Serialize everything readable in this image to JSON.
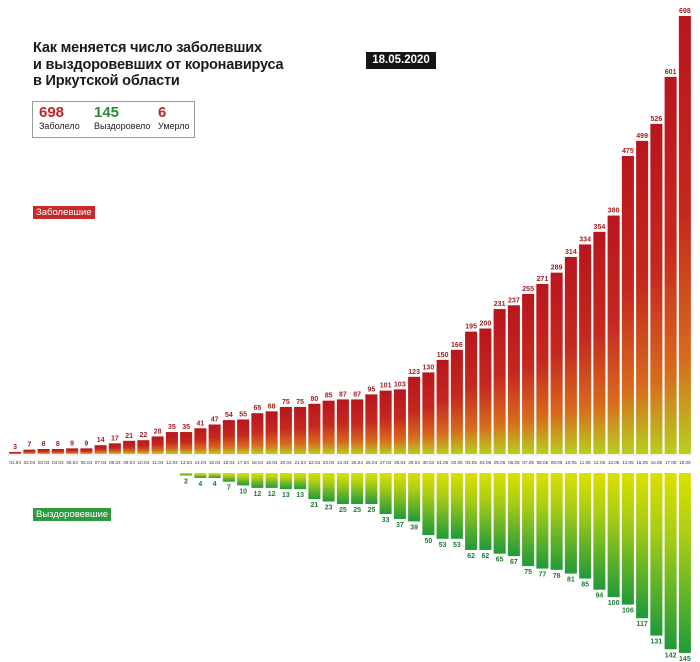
{
  "header": {
    "title_lines": [
      "Как меняется число заболевших",
      "и выздоровевших от коронавируса",
      "в Иркутской области"
    ],
    "date": "18.05.2020"
  },
  "stats": {
    "infected": {
      "value": "698",
      "label": "Заболело"
    },
    "recovered": {
      "value": "145",
      "label": "Выздоровело"
    },
    "deaths": {
      "value": "6",
      "label": "Умерло"
    }
  },
  "legend": {
    "infected": "Заболевшие",
    "recovered": "Выздоровевшие"
  },
  "colors": {
    "infected_text": "#c0262d",
    "recovered_text": "#2a8a3a",
    "deaths_text": "#c0262d",
    "infected_tag": "#c72a2a",
    "recovered_tag": "#2d9a3e",
    "bar_red": "#c01f24",
    "bar_orange": "#e07a1c",
    "bar_yellow": "#d8d800",
    "bar_green": "#3aa536"
  },
  "chart_data": {
    "type": "bar",
    "categories": [
      "01.04",
      "02.04",
      "03.04",
      "04.04",
      "05.04",
      "06.04",
      "07.04",
      "08.04",
      "09.04",
      "10.04",
      "11.04",
      "12.04",
      "13.04",
      "14.04",
      "15.04",
      "16.04",
      "17.04",
      "18.04",
      "19.04",
      "20.04",
      "21.04",
      "22.04",
      "23.04",
      "24.04",
      "25.04",
      "26.04",
      "27.04",
      "28.04",
      "29.04",
      "30.04",
      "01.05",
      "02.05",
      "03.05",
      "04.05",
      "05.05",
      "06.05",
      "07.05",
      "08.05",
      "09.05",
      "10.05",
      "11.05",
      "12.05",
      "13.05",
      "14.05",
      "15.05",
      "16.05",
      "17.05",
      "18.05"
    ],
    "series": [
      {
        "name": "Заболевшие",
        "values": [
          3,
          7,
          8,
          8,
          9,
          9,
          14,
          17,
          21,
          22,
          28,
          35,
          35,
          41,
          47,
          54,
          55,
          65,
          68,
          75,
          75,
          80,
          85,
          87,
          87,
          95,
          101,
          103,
          123,
          130,
          150,
          166,
          195,
          200,
          231,
          237,
          255,
          271,
          289,
          314,
          334,
          354,
          380,
          475,
          499,
          526,
          601,
          698
        ]
      },
      {
        "name": "Выздоровевшие",
        "values": [
          null,
          null,
          null,
          null,
          null,
          null,
          null,
          null,
          null,
          null,
          null,
          null,
          2,
          4,
          4,
          7,
          10,
          12,
          12,
          13,
          13,
          21,
          23,
          25,
          25,
          25,
          33,
          37,
          39,
          50,
          53,
          53,
          62,
          62,
          65,
          67,
          75,
          77,
          78,
          81,
          85,
          94,
          100,
          106,
          117,
          131,
          142,
          145
        ]
      }
    ]
  }
}
